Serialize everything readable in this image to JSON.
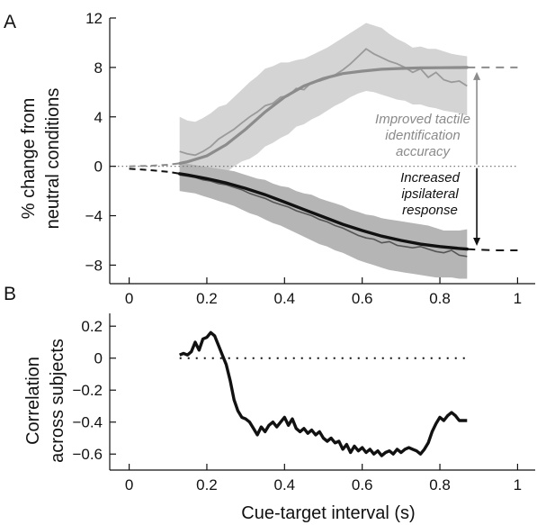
{
  "figure": {
    "panel_a_label": "A",
    "panel_b_label": "B",
    "panel_a_ylabel": [
      "% change from",
      "neutral conditions"
    ],
    "panel_b_ylabel": [
      "Correlation",
      "across subjects"
    ],
    "xlabel": "Cue-target interval (s)",
    "annotation_gray": [
      "Improved tactile",
      "identification",
      "accuracy"
    ],
    "annotation_black": [
      "Increased",
      "ipsilateral",
      "response"
    ],
    "colors": {
      "gray_series": "#8c8c8c",
      "gray_band": "#d4d4d4",
      "black_series": "#111111",
      "black_band": "#b5b5b5"
    }
  },
  "chart_data": [
    {
      "type": "line",
      "panel": "A",
      "title": "",
      "xlabel": "",
      "ylabel": "% change from neutral conditions",
      "xlim": [
        -0.05,
        1.05
      ],
      "ylim": [
        -9.5,
        12
      ],
      "x_ticks": [
        0,
        0.2,
        0.4,
        0.6,
        0.8,
        1
      ],
      "x_tick_labels": [
        "0",
        "0.2",
        "0.4",
        "0.6",
        "0.8",
        "1"
      ],
      "y_ticks": [
        -8,
        -4,
        0,
        4,
        8,
        12
      ],
      "y_tick_labels": [
        "−8",
        "−4",
        "0",
        "4",
        "8",
        "12"
      ],
      "reference_line": {
        "y": 0,
        "style": "dotted"
      },
      "series": [
        {
          "role": "accuracy-data",
          "x": [
            0.13,
            0.15,
            0.17,
            0.19,
            0.21,
            0.23,
            0.25,
            0.27,
            0.29,
            0.31,
            0.33,
            0.35,
            0.37,
            0.39,
            0.41,
            0.43,
            0.45,
            0.47,
            0.49,
            0.51,
            0.53,
            0.55,
            0.57,
            0.59,
            0.61,
            0.63,
            0.65,
            0.67,
            0.69,
            0.71,
            0.73,
            0.75,
            0.77,
            0.79,
            0.81,
            0.83,
            0.85,
            0.87
          ],
          "values": [
            1.2,
            1.0,
            0.9,
            1.2,
            1.6,
            2.2,
            2.6,
            3.0,
            3.5,
            4.0,
            4.4,
            4.9,
            5.1,
            5.6,
            5.7,
            6.3,
            6.2,
            6.8,
            6.9,
            7.1,
            7.4,
            7.8,
            8.3,
            8.9,
            9.5,
            9.1,
            8.8,
            8.5,
            8.3,
            8.0,
            7.6,
            7.9,
            7.2,
            7.6,
            7.0,
            6.8,
            6.9,
            6.5
          ],
          "band_upper": [
            4.0,
            3.7,
            3.6,
            3.9,
            4.3,
            4.8,
            5.0,
            5.6,
            6.2,
            6.8,
            7.3,
            7.9,
            8.1,
            8.4,
            8.4,
            8.6,
            8.7,
            9.0,
            9.3,
            9.6,
            10.0,
            10.4,
            10.8,
            11.2,
            11.6,
            11.4,
            11.2,
            10.7,
            10.3,
            10.0,
            9.6,
            9.7,
            9.5,
            9.5,
            9.3,
            9.1,
            9.0,
            8.9
          ],
          "band_lower": [
            -1.5,
            -1.6,
            -1.5,
            -1.4,
            -1.1,
            -0.8,
            -0.5,
            0.0,
            0.4,
            0.6,
            1.0,
            1.6,
            1.9,
            2.3,
            2.6,
            3.2,
            3.4,
            3.8,
            4.1,
            4.5,
            4.9,
            5.2,
            5.6,
            5.9,
            6.1,
            6.0,
            5.8,
            5.6,
            5.4,
            5.3,
            5.0,
            5.0,
            4.8,
            4.7,
            4.5,
            4.4,
            4.3,
            4.1
          ]
        },
        {
          "role": "accuracy-fit",
          "x": [
            0.0,
            0.05,
            0.1,
            0.13,
            0.15,
            0.2,
            0.25,
            0.3,
            0.35,
            0.4,
            0.45,
            0.5,
            0.55,
            0.6,
            0.65,
            0.7,
            0.75,
            0.8,
            0.85,
            0.87,
            0.9,
            0.95,
            1.0
          ],
          "values": [
            0.0,
            0.03,
            0.12,
            0.24,
            0.36,
            0.85,
            1.75,
            3.0,
            4.4,
            5.6,
            6.5,
            7.1,
            7.5,
            7.7,
            7.85,
            7.92,
            7.96,
            7.98,
            7.99,
            8.0,
            8.0,
            8.0,
            8.0
          ]
        },
        {
          "role": "ipsilateral-data",
          "x": [
            0.13,
            0.15,
            0.17,
            0.19,
            0.21,
            0.23,
            0.25,
            0.27,
            0.29,
            0.31,
            0.33,
            0.35,
            0.37,
            0.39,
            0.41,
            0.43,
            0.45,
            0.47,
            0.49,
            0.51,
            0.53,
            0.55,
            0.57,
            0.59,
            0.61,
            0.63,
            0.65,
            0.67,
            0.69,
            0.71,
            0.73,
            0.75,
            0.77,
            0.79,
            0.81,
            0.83,
            0.85,
            0.87
          ],
          "values": [
            -0.7,
            -0.8,
            -0.9,
            -1.1,
            -1.2,
            -1.4,
            -1.5,
            -1.7,
            -1.9,
            -2.2,
            -2.4,
            -2.6,
            -2.9,
            -3.1,
            -3.3,
            -3.6,
            -3.8,
            -4.0,
            -4.3,
            -4.5,
            -4.8,
            -5.0,
            -5.3,
            -5.6,
            -5.8,
            -5.9,
            -6.2,
            -6.1,
            -6.4,
            -6.5,
            -6.6,
            -6.5,
            -6.7,
            -6.9,
            -7.0,
            -6.8,
            -7.2,
            -7.3
          ],
          "band_upper": [
            0.3,
            0.2,
            0.1,
            0.0,
            -0.1,
            -0.2,
            -0.3,
            -0.4,
            -0.6,
            -0.8,
            -1.0,
            -1.1,
            -1.4,
            -1.6,
            -1.7,
            -2.0,
            -2.2,
            -2.3,
            -2.6,
            -2.8,
            -3.0,
            -3.2,
            -3.5,
            -3.7,
            -3.9,
            -4.0,
            -4.2,
            -4.3,
            -4.4,
            -4.5,
            -4.6,
            -4.7,
            -4.8,
            -5.0,
            -5.2,
            -5.2,
            -5.2,
            -5.1
          ],
          "band_lower": [
            -2.0,
            -2.1,
            -2.2,
            -2.4,
            -2.6,
            -2.8,
            -3.0,
            -3.2,
            -3.5,
            -3.8,
            -4.0,
            -4.3,
            -4.6,
            -4.8,
            -5.1,
            -5.4,
            -5.7,
            -6.0,
            -6.3,
            -6.5,
            -6.8,
            -7.0,
            -7.3,
            -7.6,
            -7.8,
            -8.0,
            -8.2,
            -8.4,
            -8.5,
            -8.6,
            -8.7,
            -8.8,
            -8.9,
            -9.0,
            -9.0,
            -9.0,
            -9.1,
            -9.1
          ]
        },
        {
          "role": "ipsilateral-fit",
          "x": [
            0.0,
            0.05,
            0.1,
            0.13,
            0.15,
            0.2,
            0.25,
            0.3,
            0.35,
            0.4,
            0.45,
            0.5,
            0.55,
            0.6,
            0.65,
            0.7,
            0.75,
            0.8,
            0.85,
            0.87,
            0.9,
            0.95,
            1.0
          ],
          "values": [
            -0.2,
            -0.3,
            -0.45,
            -0.6,
            -0.7,
            -1.0,
            -1.35,
            -1.8,
            -2.3,
            -2.9,
            -3.5,
            -4.1,
            -4.7,
            -5.2,
            -5.65,
            -6.0,
            -6.3,
            -6.5,
            -6.65,
            -6.7,
            -6.75,
            -6.8,
            -6.8
          ]
        }
      ]
    },
    {
      "type": "line",
      "panel": "B",
      "title": "",
      "xlabel": "Cue-target interval (s)",
      "ylabel": "Correlation across subjects",
      "xlim": [
        -0.05,
        1.05
      ],
      "ylim": [
        -0.7,
        0.28
      ],
      "x_ticks": [
        0,
        0.2,
        0.4,
        0.6,
        0.8,
        1
      ],
      "x_tick_labels": [
        "0",
        "0.2",
        "0.4",
        "0.6",
        "0.8",
        "1"
      ],
      "y_ticks": [
        -0.6,
        -0.4,
        -0.2,
        0,
        0.2
      ],
      "y_tick_labels": [
        "−0.6",
        "−0.4",
        "−0.2",
        "0",
        "0.2"
      ],
      "reference_line": {
        "y": 0,
        "x_range": [
          0.13,
          0.87
        ],
        "style": "dotted"
      },
      "series": [
        {
          "role": "correlation",
          "x": [
            0.13,
            0.14,
            0.15,
            0.16,
            0.17,
            0.18,
            0.19,
            0.2,
            0.21,
            0.22,
            0.23,
            0.24,
            0.25,
            0.26,
            0.27,
            0.28,
            0.29,
            0.3,
            0.31,
            0.32,
            0.33,
            0.34,
            0.35,
            0.36,
            0.37,
            0.38,
            0.39,
            0.4,
            0.41,
            0.42,
            0.43,
            0.44,
            0.45,
            0.46,
            0.47,
            0.48,
            0.49,
            0.5,
            0.51,
            0.52,
            0.53,
            0.54,
            0.55,
            0.56,
            0.57,
            0.58,
            0.59,
            0.6,
            0.61,
            0.62,
            0.63,
            0.64,
            0.65,
            0.66,
            0.67,
            0.68,
            0.69,
            0.7,
            0.71,
            0.72,
            0.73,
            0.74,
            0.75,
            0.76,
            0.77,
            0.78,
            0.79,
            0.8,
            0.81,
            0.82,
            0.83,
            0.84,
            0.85,
            0.86,
            0.87
          ],
          "values": [
            0.02,
            0.03,
            0.02,
            0.04,
            0.1,
            0.05,
            0.12,
            0.13,
            0.16,
            0.14,
            0.08,
            0.02,
            -0.04,
            -0.14,
            -0.26,
            -0.33,
            -0.37,
            -0.38,
            -0.4,
            -0.44,
            -0.48,
            -0.43,
            -0.46,
            -0.42,
            -0.4,
            -0.43,
            -0.4,
            -0.37,
            -0.42,
            -0.38,
            -0.44,
            -0.46,
            -0.44,
            -0.47,
            -0.45,
            -0.48,
            -0.46,
            -0.5,
            -0.52,
            -0.5,
            -0.53,
            -0.52,
            -0.57,
            -0.54,
            -0.59,
            -0.55,
            -0.58,
            -0.56,
            -0.59,
            -0.57,
            -0.6,
            -0.58,
            -0.61,
            -0.59,
            -0.58,
            -0.6,
            -0.57,
            -0.59,
            -0.57,
            -0.56,
            -0.57,
            -0.58,
            -0.6,
            -0.57,
            -0.53,
            -0.46,
            -0.41,
            -0.37,
            -0.39,
            -0.36,
            -0.34,
            -0.36,
            -0.39,
            -0.39,
            -0.39
          ]
        }
      ]
    }
  ]
}
